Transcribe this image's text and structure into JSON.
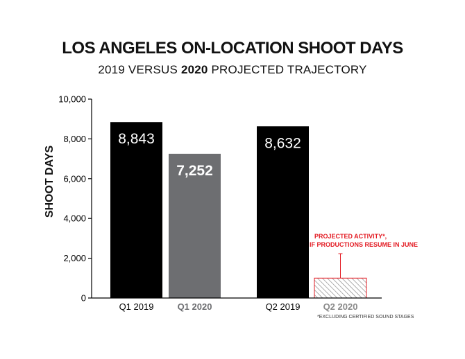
{
  "title": "LOS ANGELES ON-LOCATION SHOOT DAYS",
  "subtitle_pre": "2019 VERSUS ",
  "subtitle_bold": "2020",
  "subtitle_post": " PROJECTED TRAJECTORY",
  "footnote": "*EXCLUDING CERTIFIED SOUND STAGES",
  "annotation": {
    "line1": "PROJECTED ACTIVITY*,",
    "line2": "IF PRODUCTIONS RESUME IN JUNE"
  },
  "colors": {
    "bar_2019": "#000000",
    "bar_2020": "#6d6e71",
    "projected": "#e31b23",
    "axis": "#000000"
  },
  "chart_data": {
    "type": "bar",
    "ylabel": "SHOOT DAYS",
    "ylim": [
      0,
      10000
    ],
    "yticks": [
      0,
      2000,
      4000,
      6000,
      8000,
      10000
    ],
    "ytick_labels": [
      "0",
      "2,000",
      "4,000",
      "6,000",
      "8,000",
      "10,000"
    ],
    "grid": false,
    "categories": [
      "Q1 2019",
      "Q1 2020",
      "Q2 2019",
      "Q2 2020"
    ],
    "values": [
      8843,
      7252,
      8632,
      1000
    ],
    "value_labels": [
      "8,843",
      "7,252",
      "8,632",
      ""
    ],
    "projected": [
      false,
      false,
      false,
      true
    ]
  }
}
